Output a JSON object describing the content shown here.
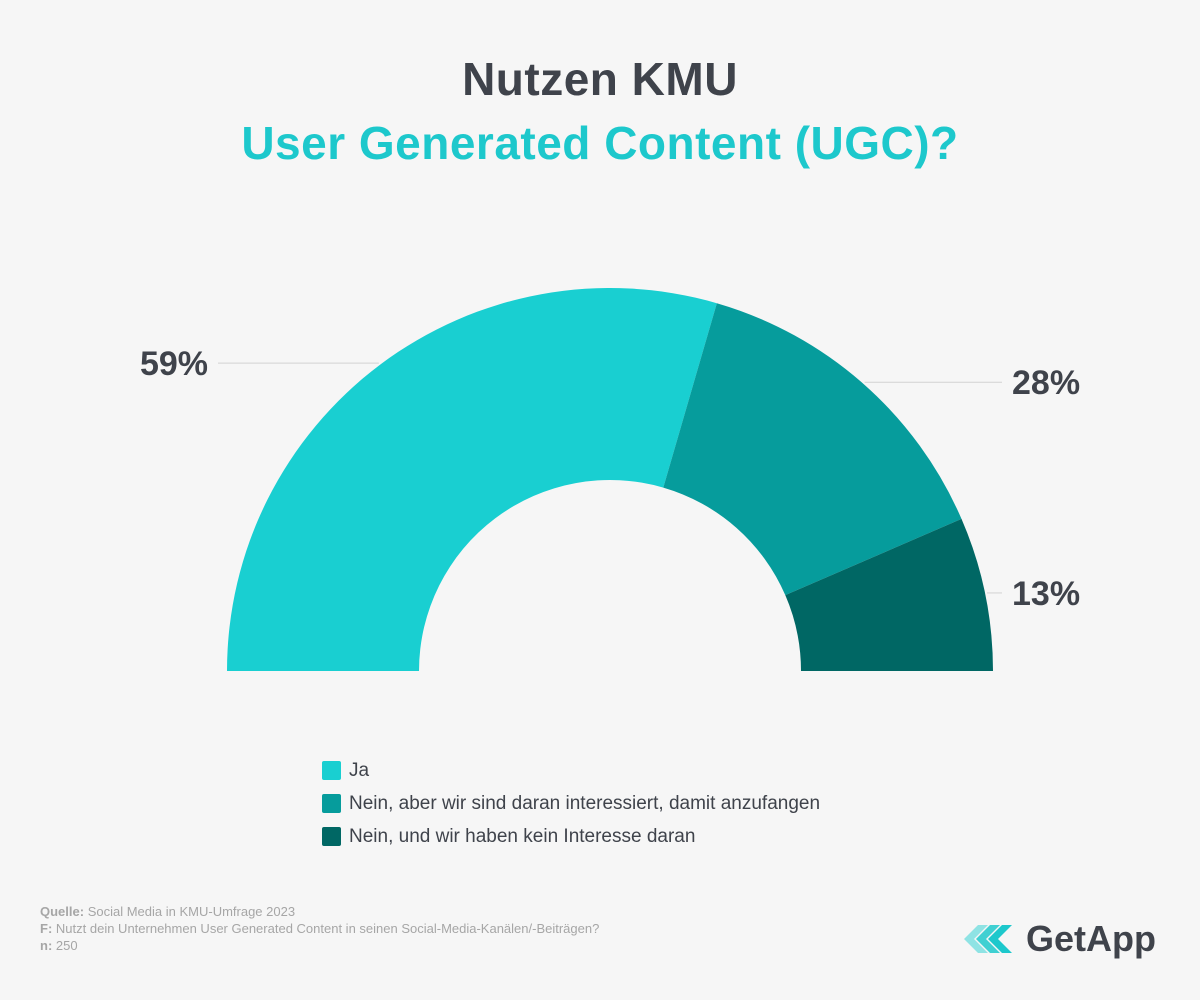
{
  "header": {
    "title_line1": "Nutzen KMU",
    "title_line2": "User Generated Content (UGC)?"
  },
  "colors": {
    "title_dark": "#3f434b",
    "accent": "#1dc8cc",
    "series": [
      "#19cfd1",
      "#069c9c",
      "#006764"
    ]
  },
  "chart_data": {
    "type": "pie",
    "variant": "half-donut",
    "categories": [
      "Ja",
      "Nein, aber wir sind daran interessiert, damit anzufangen",
      "Nein, und wir haben kein Interesse daran"
    ],
    "values": [
      59,
      28,
      13
    ],
    "value_labels": [
      "59%",
      "28%",
      "13%"
    ],
    "legend_placement": "bottom"
  },
  "footer": {
    "source_label": "Quelle:",
    "source_text": "Social Media in KMU-Umfrage 2023",
    "question_label": "F:",
    "question_text": "Nutzt dein Unternehmen User Generated Content in seinen Social-Media-Kanälen/-Beiträgen?",
    "n_label": "n:",
    "n_text": "250"
  },
  "logo": {
    "icon": "getapp-logo-icon",
    "text": "GetApp"
  }
}
